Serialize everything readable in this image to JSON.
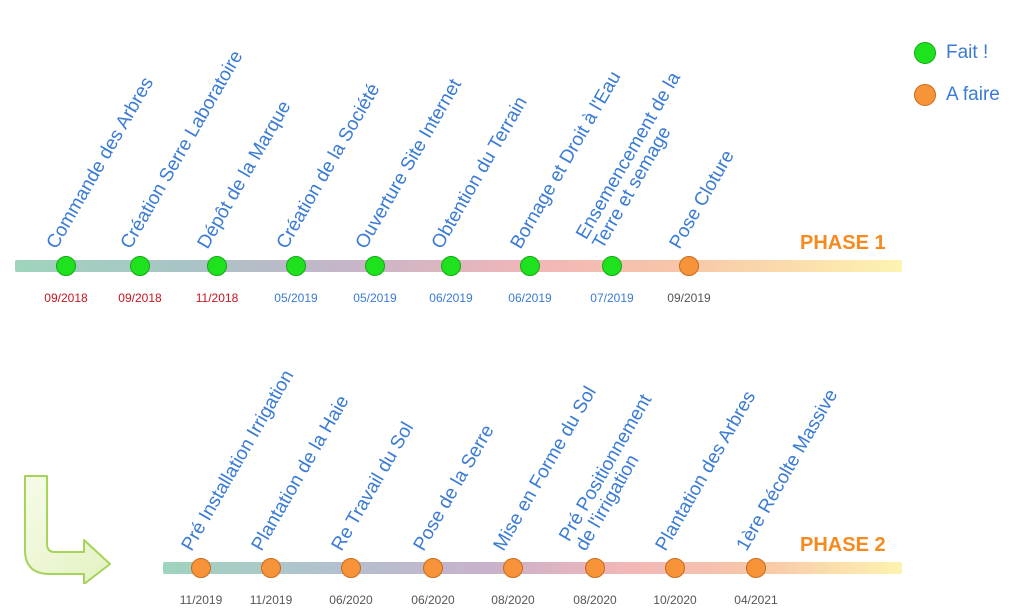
{
  "legend": {
    "done_label": "Fait !",
    "todo_label": "A faire"
  },
  "phase1": {
    "title": "PHASE 1",
    "milestones": [
      {
        "label": "Commande des Arbres",
        "date": "09/2018",
        "status": "done"
      },
      {
        "label": "Création Serre Laboratoire",
        "date": "09/2018",
        "status": "done"
      },
      {
        "label": "Dépôt de la Marque",
        "date": "11/2018",
        "status": "done"
      },
      {
        "label": "Création de la Société",
        "date": "05/2019",
        "status": "done"
      },
      {
        "label": "Ouverture Site Internet",
        "date": "05/2019",
        "status": "done"
      },
      {
        "label": "Obtention du Terrain",
        "date": "06/2019",
        "status": "done"
      },
      {
        "label": "Bornage et Droit à l'Eau",
        "date": "06/2019",
        "status": "done"
      },
      {
        "label": "Ensemencement de la",
        "label2": "Terre et semage",
        "date": "07/2019",
        "status": "done"
      },
      {
        "label": "Pose Cloture",
        "date": "09/2019",
        "status": "todo"
      }
    ]
  },
  "phase2": {
    "title": "PHASE 2",
    "milestones": [
      {
        "label": "Pré Installation Irrigation",
        "date": "11/2019",
        "status": "todo"
      },
      {
        "label": "Plantation de la Haie",
        "date": "11/2019",
        "status": "todo"
      },
      {
        "label": "Re Travail du Sol",
        "date": "06/2020",
        "status": "todo"
      },
      {
        "label": "Pose de la Serre",
        "date": "06/2020",
        "status": "todo"
      },
      {
        "label": "Mise en Forme du Sol",
        "date": "08/2020",
        "status": "todo"
      },
      {
        "label": "Pré Positionnement",
        "label2": "de l'irrigation",
        "date": "08/2020",
        "status": "todo"
      },
      {
        "label": "Plantation des Arbres",
        "date": "10/2020",
        "status": "todo"
      },
      {
        "label": "1ère Récolte Massive",
        "date": "04/2021",
        "status": "todo"
      }
    ]
  },
  "colors": {
    "done": "#1fe21f",
    "todo": "#f7943a",
    "label": "#3a7bd5",
    "phase": "#f68a1f",
    "date_past": "#c8141e",
    "date_recent": "#3a7bd5",
    "date_future": "#555555"
  }
}
